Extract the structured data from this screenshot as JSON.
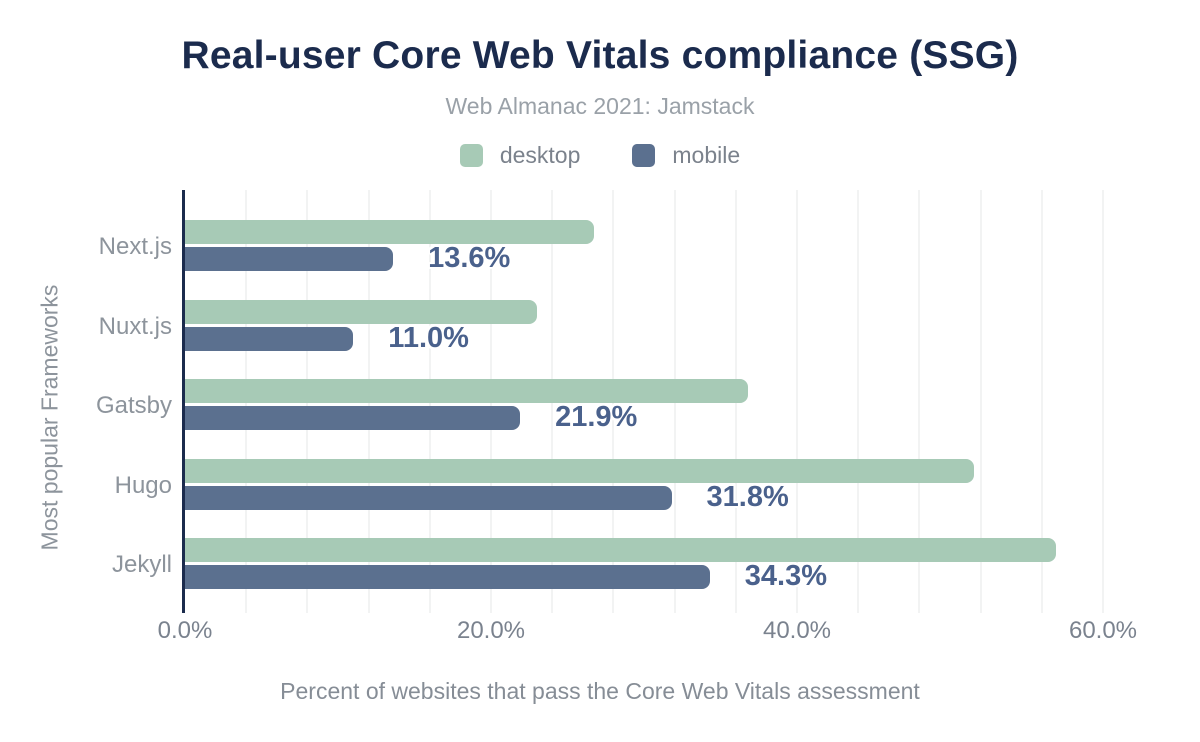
{
  "title": "Real-user Core Web Vitals compliance (SSG)",
  "subtitle": "Web Almanac 2021: Jamstack",
  "legend": [
    {
      "label": "desktop",
      "color": "#a7cab6"
    },
    {
      "label": "mobile",
      "color": "#5b708f"
    }
  ],
  "chart_data": {
    "type": "bar",
    "orientation": "horizontal",
    "title": "Real-user Core Web Vitals compliance (SSG)",
    "subtitle": "Web Almanac 2021: Jamstack",
    "categories": [
      "Next.js",
      "Nuxt.js",
      "Gatsby",
      "Hugo",
      "Jekyll"
    ],
    "series": [
      {
        "name": "desktop",
        "color": "#a7cab6",
        "values": [
          26.7,
          23.0,
          36.8,
          51.6,
          56.9
        ],
        "labels": [
          "",
          "",
          "",
          "",
          ""
        ]
      },
      {
        "name": "mobile",
        "color": "#5b708f",
        "values": [
          13.6,
          11.0,
          21.9,
          31.8,
          34.3
        ],
        "labels": [
          "13.6%",
          "11.0%",
          "21.9%",
          "31.8%",
          "34.3%"
        ]
      }
    ],
    "xlabel": "Percent of websites that pass the Core Web Vitals assessment",
    "ylabel": "Most popular Frameworks",
    "xlim": [
      0,
      60
    ],
    "x_tick_values": [
      0,
      20,
      40,
      60
    ],
    "x_tick_labels": [
      "0.0%",
      "20.0%",
      "40.0%",
      "60.0%"
    ],
    "grid": "vertical minor gridlines every 4%, legend top center",
    "label_color": "#4a618c",
    "axis_line_color": "#1b2b4d"
  },
  "colors": {
    "background": "#ffffff",
    "title": "#1b2b4d",
    "subtitle": "#9aa1a8",
    "tick_text": "#7a828e",
    "category_text": "#8d949c",
    "gridline": "#f2f3f3"
  }
}
